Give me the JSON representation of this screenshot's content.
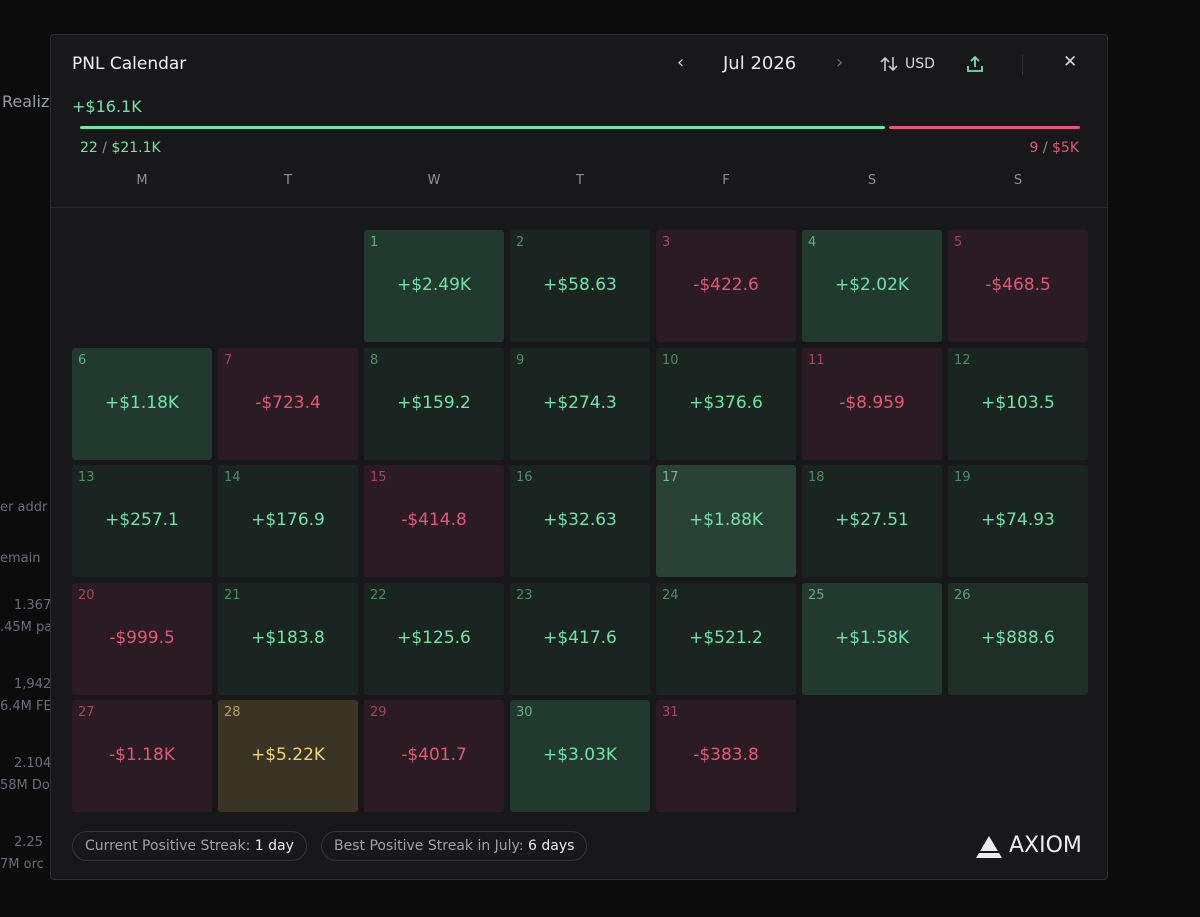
{
  "background": {
    "texts": [
      "Realiz",
      "er addr",
      "emain",
      "1.367",
      ".45M pa",
      "1,942",
      "6.4M FE",
      "2.104",
      "58M Do",
      "2.25",
      "7M orc"
    ]
  },
  "header": {
    "title": "PNL Calendar",
    "prev": "‹",
    "month": "Jul 2026",
    "next": "›",
    "currency": "USD",
    "close": "✕"
  },
  "summary": {
    "total": "+$16.1K",
    "wins": {
      "count": "22",
      "sep": "/",
      "amount": "$21.1K"
    },
    "losses": {
      "count": "9",
      "sep": "/",
      "amount": "$5K"
    }
  },
  "weekdays": [
    "M",
    "T",
    "W",
    "T",
    "F",
    "S",
    "S"
  ],
  "days": [
    {
      "day": "1",
      "value": "+$2.49K",
      "tone": "pos-strong"
    },
    {
      "day": "2",
      "value": "+$58.63",
      "tone": "pos"
    },
    {
      "day": "3",
      "value": "-$422.6",
      "tone": "neg"
    },
    {
      "day": "4",
      "value": "+$2.02K",
      "tone": "pos-strong"
    },
    {
      "day": "5",
      "value": "-$468.5",
      "tone": "neg"
    },
    {
      "day": "6",
      "value": "+$1.18K",
      "tone": "pos-strong"
    },
    {
      "day": "7",
      "value": "-$723.4",
      "tone": "neg"
    },
    {
      "day": "8",
      "value": "+$159.2",
      "tone": "pos"
    },
    {
      "day": "9",
      "value": "+$274.3",
      "tone": "pos"
    },
    {
      "day": "10",
      "value": "+$376.6",
      "tone": "pos"
    },
    {
      "day": "11",
      "value": "-$8.959",
      "tone": "neg"
    },
    {
      "day": "12",
      "value": "+$103.5",
      "tone": "pos"
    },
    {
      "day": "13",
      "value": "+$257.1",
      "tone": "pos"
    },
    {
      "day": "14",
      "value": "+$176.9",
      "tone": "pos"
    },
    {
      "day": "15",
      "value": "-$414.8",
      "tone": "neg"
    },
    {
      "day": "16",
      "value": "+$32.63",
      "tone": "pos"
    },
    {
      "day": "17",
      "value": "+$1.88K",
      "tone": "pos-light"
    },
    {
      "day": "18",
      "value": "+$27.51",
      "tone": "pos"
    },
    {
      "day": "19",
      "value": "+$74.93",
      "tone": "pos"
    },
    {
      "day": "20",
      "value": "-$999.5",
      "tone": "neg"
    },
    {
      "day": "21",
      "value": "+$183.8",
      "tone": "pos"
    },
    {
      "day": "22",
      "value": "+$125.6",
      "tone": "pos"
    },
    {
      "day": "23",
      "value": "+$417.6",
      "tone": "pos"
    },
    {
      "day": "24",
      "value": "+$521.2",
      "tone": "pos"
    },
    {
      "day": "25",
      "value": "+$1.58K",
      "tone": "pos-strong"
    },
    {
      "day": "26",
      "value": "+$888.6",
      "tone": "pos-mid"
    },
    {
      "day": "27",
      "value": "-$1.18K",
      "tone": "neg"
    },
    {
      "day": "28",
      "value": "+$5.22K",
      "tone": "gold"
    },
    {
      "day": "29",
      "value": "-$401.7",
      "tone": "neg"
    },
    {
      "day": "30",
      "value": "+$3.03K",
      "tone": "pos-strong"
    },
    {
      "day": "31",
      "value": "-$383.8",
      "tone": "neg"
    }
  ],
  "footer": {
    "current_streak": {
      "label": "Current Positive Streak:",
      "value": "1 day"
    },
    "best_streak": {
      "label": "Best Positive Streak in July:",
      "value": "6 days"
    },
    "logo": "AXIOM"
  }
}
